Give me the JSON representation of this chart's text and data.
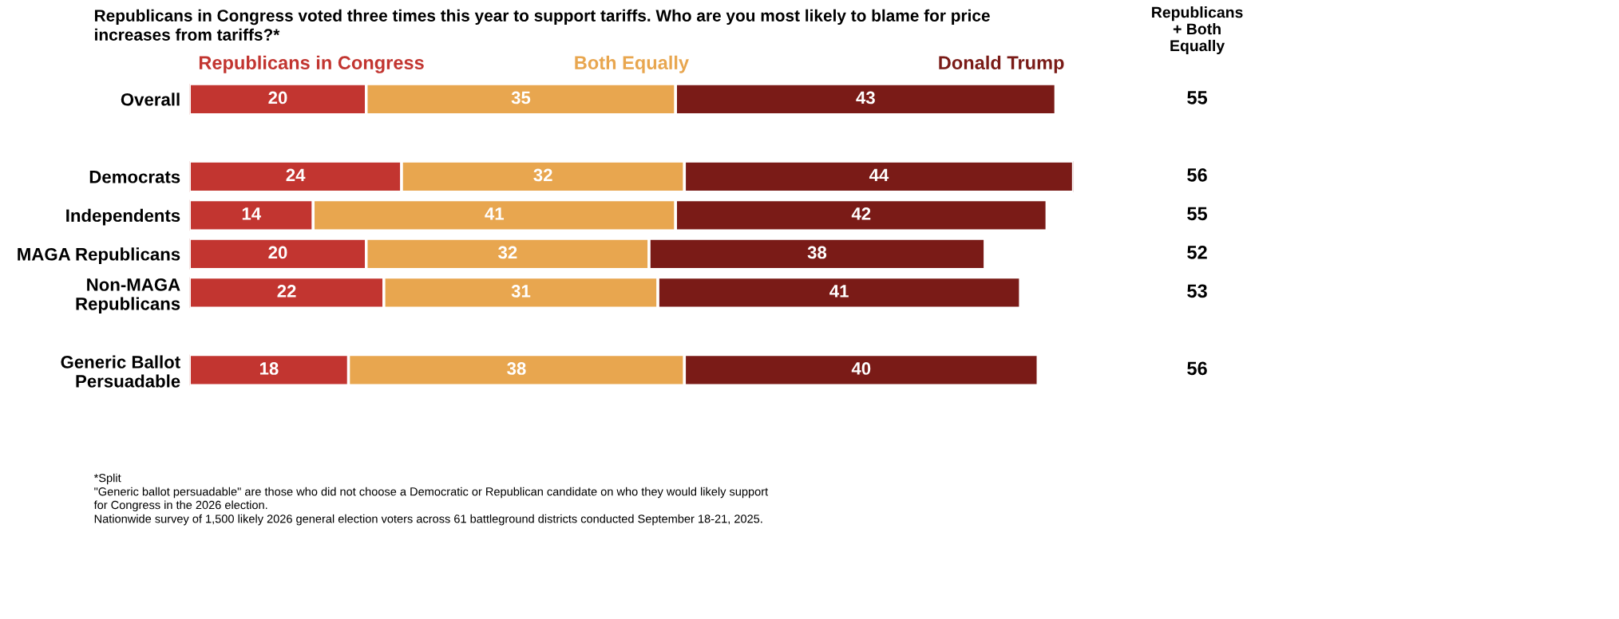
{
  "chart_data": {
    "type": "bar",
    "orientation": "horizontal",
    "stacked": true,
    "data_labels": true,
    "legend": "top",
    "grid": false,
    "title": "Republicans in Congress voted three times this year to support tariffs. Who are you most likely to blame for price\nincreases from tariffs?*",
    "categories": [
      "Overall",
      null,
      "Democrats",
      "Independents",
      "MAGA Republicans",
      "Non-MAGA\nRepublicans",
      null,
      "Generic Ballot\nPersuadable"
    ],
    "series": [
      {
        "name": "Republicans in Congress",
        "color": "#c23530",
        "values": [
          20,
          null,
          24,
          14,
          20,
          22,
          null,
          18
        ]
      },
      {
        "name": "Both Equally",
        "color": "#e8a64f",
        "values": [
          35,
          null,
          32,
          41,
          32,
          31,
          null,
          38
        ]
      },
      {
        "name": "Donald Trump",
        "color": "#7a1b17",
        "values": [
          43,
          null,
          44,
          42,
          38,
          41,
          null,
          40
        ]
      }
    ],
    "annotations": [
      "Republicans\n+ Both\nEqually",
      "55",
      "56",
      "55",
      "52",
      "53",
      "56",
      "*Split",
      "\"Generic ballot persuadable\" are those who did not choose a Democratic or Republican candidate on who they would likely support\nfor Congress in the 2026 election.",
      "Nationwide survey of 1,500 likely 2026 general election voters across 61 battleground districts conducted September 18-21, 2025."
    ]
  }
}
